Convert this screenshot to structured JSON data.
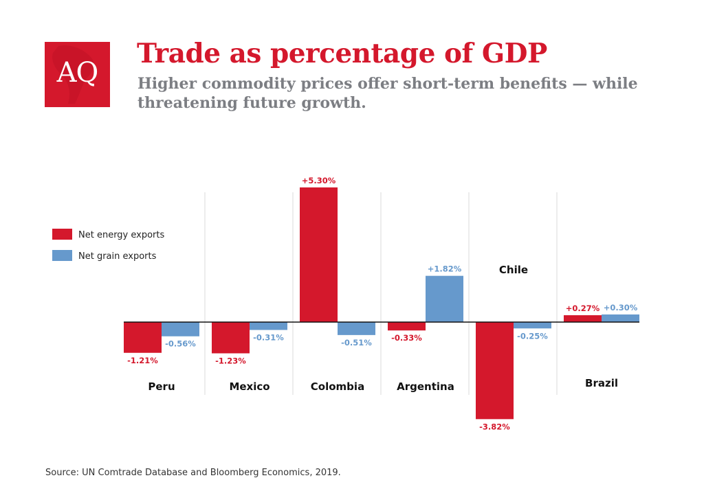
{
  "logo": {
    "text": "AQ"
  },
  "header": {
    "title": "Trade as percentage of GDP",
    "subtitle": "Higher commodity prices offer short-term benefits — while threatening future growth."
  },
  "source": "Source: UN Comtrade Database and Bloomberg Economics, 2019.",
  "colors": {
    "energy": "#d4182c",
    "grain": "#6699cc",
    "divider": "#d8d8d8"
  },
  "chart_data": {
    "type": "bar",
    "title": "Trade as percentage of GDP",
    "categories": [
      "Peru",
      "Mexico",
      "Colombia",
      "Argentina",
      "Chile",
      "Brazil"
    ],
    "series": [
      {
        "name": "Net energy exports",
        "values": [
          -1.21,
          -1.23,
          5.3,
          -0.33,
          -3.82,
          0.27
        ],
        "labels": [
          "-1.21%",
          "-1.23%",
          "+5.30%",
          "-0.33%",
          "-3.82%",
          "+0.27%"
        ]
      },
      {
        "name": "Net grain exports",
        "values": [
          -0.56,
          -0.31,
          -0.51,
          1.82,
          -0.25,
          0.3
        ],
        "labels": [
          "-0.56%",
          "-0.31%",
          "-0.51%",
          "+1.82%",
          "-0.25%",
          "+0.30%"
        ]
      }
    ],
    "unit": "%",
    "legend_position": "left",
    "grid": false
  }
}
